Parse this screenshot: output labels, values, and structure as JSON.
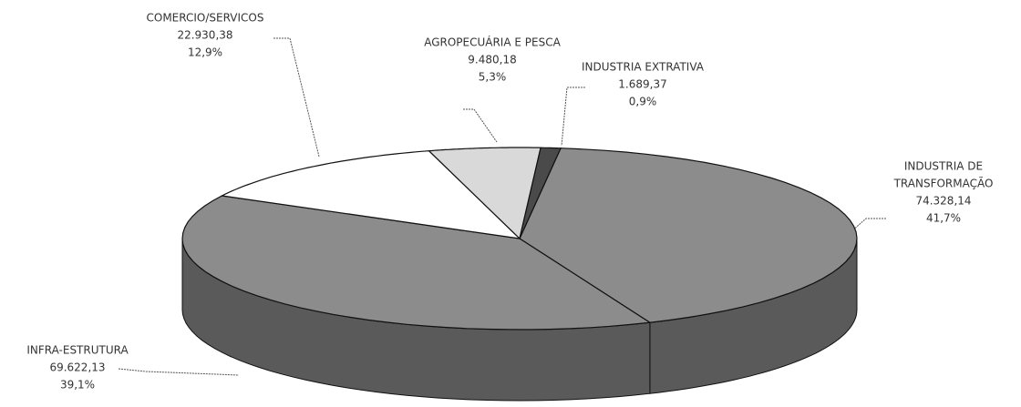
{
  "chart_data": {
    "type": "pie",
    "categories": [
      [
        "INDUSTRIA DE",
        "TRANSFORMAÇÃO"
      ],
      [
        "INFRA-ESTRUTURA"
      ],
      [
        "COMERCIO/SERVICOS"
      ],
      [
        "AGROPECUÁRIA E PESCA"
      ],
      [
        "INDUSTRIA EXTRATIVA"
      ]
    ],
    "values": [
      74328.14,
      69622.13,
      22930.38,
      9480.18,
      1689.37
    ],
    "value_labels": [
      "74.328,14",
      "69.622,13",
      "22.930,38",
      "9.480,18",
      "1.689,37"
    ],
    "percents": [
      41.7,
      39.1,
      12.9,
      5.3,
      0.9
    ],
    "percent_labels": [
      "41,7%",
      "39,1%",
      "12,9%",
      "5,3%",
      "0,9%"
    ],
    "colors": [
      "#8c8c8c",
      "#8c8c8c",
      "#ffffff",
      "#d9d9d9",
      "#4a4a4a"
    ],
    "side_colors": [
      "#5a5a5a",
      "#5a5a5a",
      "#bfbfbf",
      "#a0a0a0",
      "#2e2e2e"
    ]
  }
}
